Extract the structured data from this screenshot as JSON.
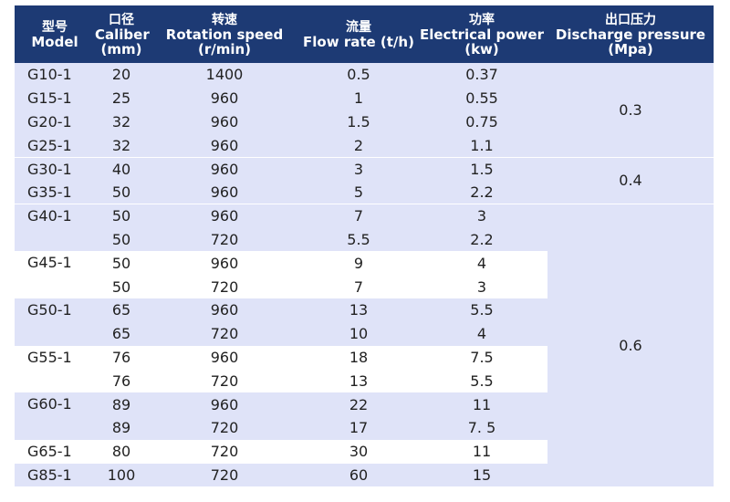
{
  "headers": [
    {
      "zh": "型号",
      "en": "Model"
    },
    {
      "zh": "口径",
      "en": "Caliber",
      "unit": "(mm)"
    },
    {
      "zh": "转速",
      "en": "Rotation speed",
      "unit": "(r/min)"
    },
    {
      "zh": "流量",
      "en": "Flow rate (t/h)"
    },
    {
      "zh": "功率",
      "en": "Electrical power",
      "unit": "(kw)"
    },
    {
      "zh": "出口压力",
      "en": "Discharge pressure",
      "unit": "(Mpa)"
    }
  ],
  "groups": [
    {
      "model": "G10-1",
      "rows": [
        {
          "caliber": "20",
          "speed": "1400",
          "flow": "0.5",
          "power": "0.37"
        }
      ]
    },
    {
      "model": "G15-1",
      "rows": [
        {
          "caliber": "25",
          "speed": "960",
          "flow": "1",
          "power": "0.55"
        }
      ]
    },
    {
      "model": "G20-1",
      "rows": [
        {
          "caliber": "32",
          "speed": "960",
          "flow": "1.5",
          "power": "0.75"
        }
      ]
    },
    {
      "model": "G25-1",
      "rows": [
        {
          "caliber": "32",
          "speed": "960",
          "flow": "2",
          "power": "1.1"
        }
      ]
    },
    {
      "model": "G30-1",
      "rows": [
        {
          "caliber": "40",
          "speed": "960",
          "flow": "3",
          "power": "1.5"
        }
      ]
    },
    {
      "model": "G35-1",
      "rows": [
        {
          "caliber": "50",
          "speed": "960",
          "flow": "5",
          "power": "2.2"
        }
      ]
    },
    {
      "model": "G40-1",
      "rows": [
        {
          "caliber": "50",
          "speed": "960",
          "flow": "7",
          "power": "3"
        },
        {
          "caliber": "50",
          "speed": "720",
          "flow": "5.5",
          "power": "2.2"
        }
      ]
    },
    {
      "model": "G45-1",
      "rows": [
        {
          "caliber": "50",
          "speed": "960",
          "flow": "9",
          "power": "4"
        },
        {
          "caliber": "50",
          "speed": "720",
          "flow": "7",
          "power": "3"
        }
      ]
    },
    {
      "model": "G50-1",
      "rows": [
        {
          "caliber": "65",
          "speed": "960",
          "flow": "13",
          "power": "5.5"
        },
        {
          "caliber": "65",
          "speed": "720",
          "flow": "10",
          "power": "4"
        }
      ]
    },
    {
      "model": "G55-1",
      "rows": [
        {
          "caliber": "76",
          "speed": "960",
          "flow": "18",
          "power": "7.5"
        },
        {
          "caliber": "76",
          "speed": "720",
          "flow": "13",
          "power": "5.5"
        }
      ]
    },
    {
      "model": "G60-1",
      "rows": [
        {
          "caliber": "89",
          "speed": "960",
          "flow": "22",
          "power": "11"
        },
        {
          "caliber": "89",
          "speed": "720",
          "flow": "17",
          "power": "7. 5"
        }
      ]
    },
    {
      "model": "G65-1",
      "rows": [
        {
          "caliber": "80",
          "speed": "720",
          "flow": "30",
          "power": "11"
        }
      ]
    },
    {
      "model": "G85-1",
      "rows": [
        {
          "caliber": "100",
          "speed": "720",
          "flow": "60",
          "power": "15"
        }
      ]
    }
  ],
  "pressure": [
    "0.3",
    "0.4",
    "0.6"
  ],
  "colors": {
    "header_bg": "#1d3a74",
    "shade_bg": "#dfe3f8",
    "plain_bg": "#ffffff"
  }
}
